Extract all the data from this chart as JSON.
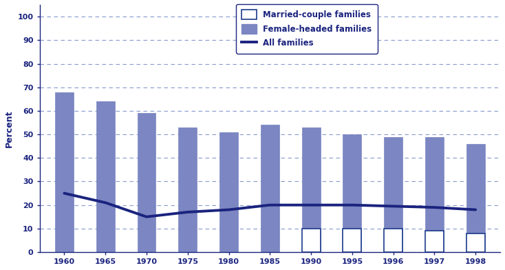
{
  "x_positions": [
    0,
    1,
    2,
    3,
    4,
    5,
    6,
    7,
    8,
    9,
    10
  ],
  "x_labels": [
    "1960",
    "1965",
    "1970",
    "1975",
    "1980",
    "1985",
    "1990",
    "1995",
    "1996",
    "1997",
    "1998"
  ],
  "female_headed": [
    68,
    64,
    59,
    53,
    51,
    54,
    53,
    50,
    49,
    49,
    46
  ],
  "married_couple": [
    null,
    null,
    null,
    null,
    null,
    null,
    10,
    10,
    10,
    9,
    8
  ],
  "all_families": [
    25,
    21,
    15,
    17,
    18,
    20,
    20,
    20,
    19.5,
    19,
    18
  ],
  "bar_color_female": "#7b86c2",
  "bar_color_married": "#ffffff",
  "bar_edge_color_married": "#1a3a8a",
  "line_color": "#1a237e",
  "grid_color": "#3355aa",
  "axis_color": "#1a237e",
  "tick_color": "#1a237e",
  "text_color": "#1a237e",
  "ylabel": "Percent",
  "yticks": [
    0,
    10,
    20,
    30,
    40,
    50,
    60,
    70,
    80,
    90,
    100
  ],
  "ylim": [
    0,
    105
  ],
  "background_color": "#ffffff",
  "legend_labels": [
    "Married-couple families",
    "Female-headed families",
    "All families"
  ],
  "bar_width": 0.45
}
